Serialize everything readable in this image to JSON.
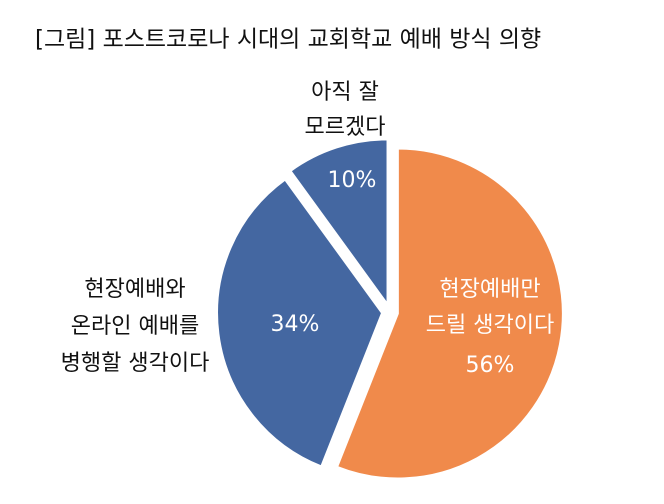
{
  "chart_data": {
    "type": "pie",
    "title": "[그림] 포스트코로나 시대의 교회학교 예배 방식 의향",
    "categories": [
      [
        "현장예배만",
        "드릴 생각이다"
      ],
      [
        "현장예배와",
        "온라인 예배를",
        "병행할 생각이다"
      ],
      [
        "아직 잘",
        "모르겠다"
      ]
    ],
    "values": [
      56,
      34,
      10
    ],
    "value_labels": [
      "56%",
      "34%",
      "10%"
    ],
    "colors": [
      "#f08a4b",
      "#4467a1",
      "#4467a1"
    ]
  }
}
